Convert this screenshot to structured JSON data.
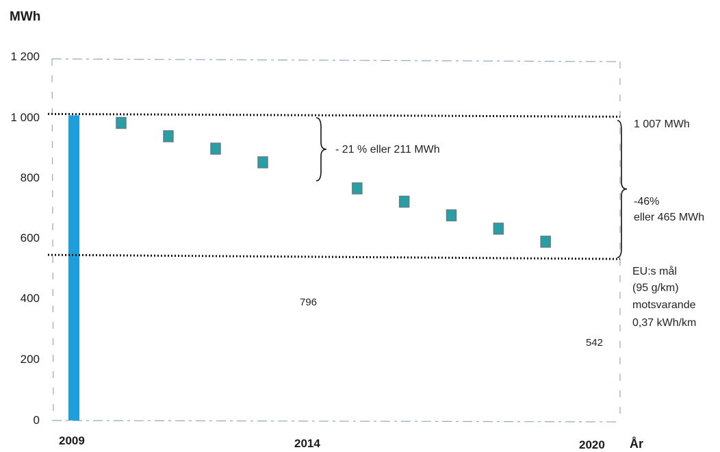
{
  "chart_data": {
    "type": "bar",
    "ylabel": "MWh",
    "xlabel": "År",
    "ylim": [
      0,
      1200
    ],
    "yticks": [
      "0",
      "200",
      "400",
      "600",
      "800",
      "1 000",
      "1 200"
    ],
    "xticks": [
      "2009",
      "2014",
      "2020"
    ],
    "bar": {
      "year": 2009,
      "value": 1007,
      "color": "#1f9fd9"
    },
    "markers": {
      "years": [
        2010,
        2011,
        2012,
        2013,
        2015,
        2016,
        2017,
        2018,
        2019
      ],
      "values": [
        982,
        938,
        897,
        852,
        766,
        722,
        677,
        633,
        590
      ],
      "color": "#2a9ea5"
    },
    "reference_lines": [
      {
        "value": 1007,
        "label": "1 007 MWh"
      },
      {
        "value": 542,
        "label": "EU:s mål"
      }
    ],
    "grid": false
  },
  "annotations": {
    "bracket_short": "- 21 % eller 211 MWh",
    "bracket_long_1": "-46%",
    "bracket_long_2": "eller 465 MWh",
    "eu_line1": "EU:s mål",
    "eu_line2": "(95 g/km)",
    "eu_line3": "motsvarande",
    "eu_line4": "0,37 kWh/km",
    "ref_top_label": "1 007 MWh",
    "value_796": "796",
    "value_542": "542"
  }
}
